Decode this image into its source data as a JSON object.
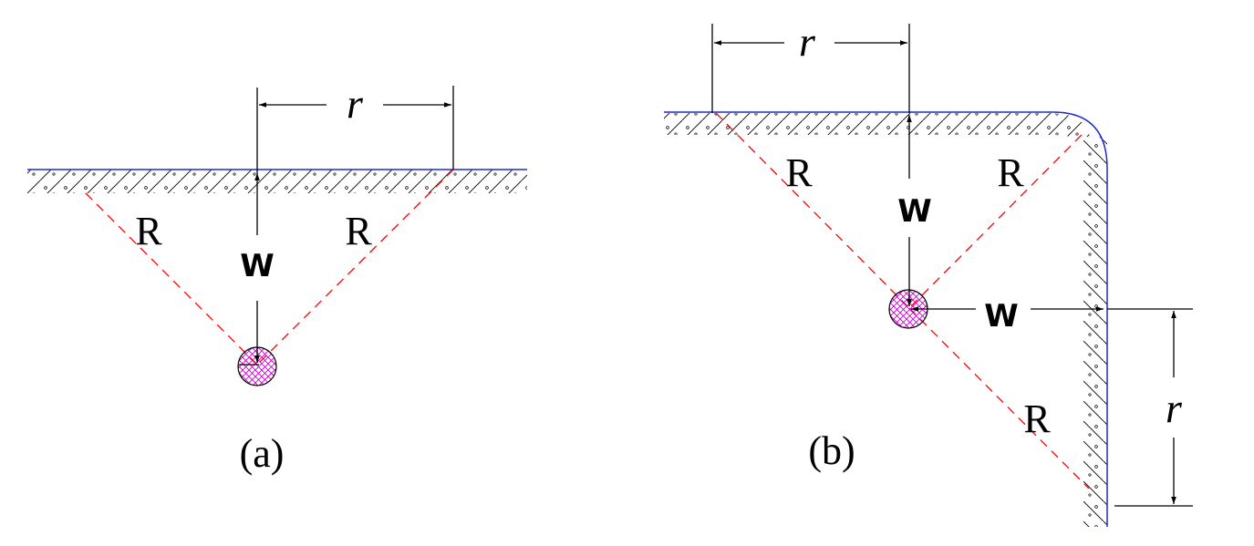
{
  "diagram_a": {
    "caption": "(a)",
    "radius_label": "R",
    "depth_label": "W",
    "distance_label": "r"
  },
  "diagram_b": {
    "caption": "(b)",
    "radius_label": "R",
    "depth_label": "W",
    "distance_label": "r"
  },
  "colors": {
    "surface_line": "#1f2bd1",
    "radius_dash": "#ff0000",
    "charge_hatch": "#cc00cc",
    "ink": "#000000"
  }
}
